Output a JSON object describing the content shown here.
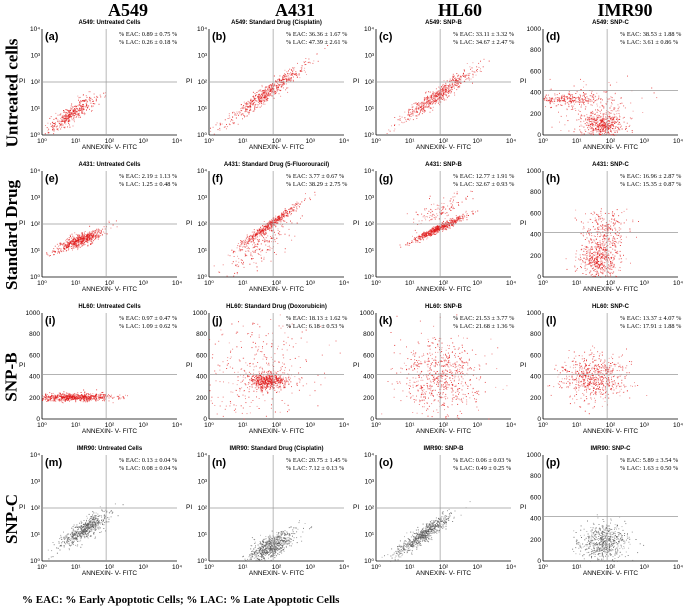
{
  "columns": [
    "A549",
    "A431",
    "HL60",
    "IMR90"
  ],
  "rows": [
    "Untreated cells",
    "Standard Drug",
    "SNP-B",
    "SNP-C"
  ],
  "footer": "% EAC: % Early Apoptotic Cells; % LAC: % Late Apoptotic Cells",
  "chart_data": {
    "type": "scatter",
    "description_axes": {
      "xlabel": "ANNEXIN- V- FITC",
      "ylabel": "PI"
    },
    "colors": {
      "red": "#e01818",
      "gray": "#555555",
      "quadrant_line": "#9a9a9a"
    },
    "panels": [
      {
        "id": "a",
        "title": "A549: Untreated Cells",
        "eac": "% EAC: 0.89 ± 0.75 %",
        "lac": "% LAC: 0.26 ± 0.18 %",
        "yscale": "log",
        "xticks": [
          "10⁰",
          "10¹",
          "10²",
          "10³",
          "10⁴"
        ],
        "yticks": [
          "10⁰",
          "10¹",
          "10²",
          "10³",
          "10⁴"
        ],
        "color": "red",
        "clusters": [
          {
            "x": 0.9,
            "y": 0.85,
            "sx": 0.35,
            "sy": 0.3,
            "n": 420,
            "rot": 0.8
          }
        ]
      },
      {
        "id": "e",
        "title": "A431: Untreated Cells",
        "eac": "% EAC: 2.19 ± 1.13 %",
        "lac": "% LAC: 1.25 ± 0.48 %",
        "yscale": "log",
        "xticks": [
          "10⁰",
          "10¹",
          "10²",
          "10³",
          "10⁴"
        ],
        "yticks": [
          "10⁰",
          "10¹",
          "10²",
          "10³",
          "10⁴"
        ],
        "color": "red",
        "clusters": [
          {
            "x": 1.1,
            "y": 1.4,
            "sx": 0.35,
            "sy": 0.2,
            "n": 600,
            "rot": 0.5
          }
        ]
      },
      {
        "id": "i",
        "title": "HL60: Untreated Cells",
        "eac": "% EAC: 0.97 ± 0.47 %",
        "lac": "% LAC: 1.09 ± 0.62 %",
        "yscale": "linear",
        "xticks": [
          "10⁰",
          "10¹",
          "10²",
          "10³",
          "10⁴"
        ],
        "yticks": [
          "0",
          "200",
          "400",
          "600",
          "800",
          "1000"
        ],
        "color": "red",
        "clusters": [
          {
            "x": 0.95,
            "y": 210,
            "sx": 0.55,
            "sy": 18,
            "n": 700,
            "rot": 0
          }
        ]
      },
      {
        "id": "m",
        "title": "IMR90: Untreated Cells",
        "eac": "% EAC: 0.13 ± 0.04 %",
        "lac": "% LAC: 0.08 ± 0.04 %",
        "yscale": "log",
        "xticks": [
          "10⁰",
          "10¹",
          "10²",
          "10³",
          "10⁴"
        ],
        "yticks": [
          "10⁰",
          "10¹",
          "10²",
          "10³",
          "10⁴"
        ],
        "color": "gray",
        "clusters": [
          {
            "x": 1.25,
            "y": 1.2,
            "sx": 0.35,
            "sy": 0.3,
            "n": 600,
            "rot": 0.75
          }
        ]
      },
      {
        "id": "b",
        "title": "A549: Standard Drug (Cisplatin)",
        "eac": "% EAC: 36.36 ± 1.67 %",
        "lac": "% LAC: 47.39 ± 2.61 %",
        "yscale": "log",
        "xticks": [
          "10⁰",
          "10¹",
          "10²",
          "10³",
          "10⁴"
        ],
        "yticks": [
          "10⁰",
          "10¹",
          "10²",
          "10³",
          "10⁴"
        ],
        "color": "red",
        "clusters": [
          {
            "x": 1.7,
            "y": 1.6,
            "sx": 0.6,
            "sy": 0.25,
            "n": 600,
            "rot": 0.9
          }
        ]
      },
      {
        "id": "f",
        "title": "A431: Standard Drug (5-Fluorouracil)",
        "eac": "% EAC: 3.77 ± 0.67 %",
        "lac": "% LAC: 38.29 ± 2.75 %",
        "yscale": "log",
        "xticks": [
          "10⁰",
          "10¹",
          "10²",
          "10³",
          "10⁴"
        ],
        "yticks": [
          "10⁰",
          "10¹",
          "10²",
          "10³",
          "10⁴"
        ],
        "color": "red",
        "clusters": [
          {
            "x": 1.75,
            "y": 1.95,
            "sx": 0.45,
            "sy": 0.15,
            "n": 500,
            "rot": 0.9
          },
          {
            "x": 1.5,
            "y": 1.2,
            "sx": 0.5,
            "sy": 0.5,
            "n": 200,
            "rot": 0.8
          }
        ]
      },
      {
        "id": "j",
        "title": "HL60: Standard Drug (Doxorubicin)",
        "eac": "% EAC: 18.13 ± 1.62 %",
        "lac": "% LAC: 6.18 ± 0.53 %",
        "yscale": "linear",
        "xticks": [
          "10⁰",
          "10¹",
          "10²",
          "10³",
          "10⁴"
        ],
        "yticks": [
          "0",
          "200",
          "400",
          "600",
          "800",
          "1000"
        ],
        "color": "red",
        "clusters": [
          {
            "x": 1.75,
            "y": 360,
            "sx": 0.28,
            "sy": 40,
            "n": 550,
            "rot": 0
          },
          {
            "x": 1.5,
            "y": 450,
            "sx": 0.8,
            "sy": 240,
            "n": 350,
            "rot": 0
          }
        ]
      },
      {
        "id": "n",
        "title": "IMR90: Standard Drug (Cisplatin)",
        "eac": "% EAC: 20.75 ± 1.45 %",
        "lac": "% LAC: 7.12 ± 0.13 %",
        "yscale": "log",
        "xticks": [
          "10⁰",
          "10¹",
          "10²",
          "10³",
          "10⁴"
        ],
        "yticks": [
          "10⁰",
          "10¹",
          "10²",
          "10³",
          "10⁴"
        ],
        "color": "gray",
        "clusters": [
          {
            "x": 1.85,
            "y": 0.6,
            "sx": 0.35,
            "sy": 0.35,
            "n": 650,
            "rot": 0.6
          }
        ]
      },
      {
        "id": "c",
        "title": "A549: SNP-B",
        "eac": "% EAC: 33.11 ± 3.32 %",
        "lac": "% LAC: 34.67 ± 2.47 %",
        "yscale": "log",
        "xticks": [
          "10⁰",
          "10¹",
          "10²",
          "10³",
          "10⁴"
        ],
        "yticks": [
          "10⁰",
          "10¹",
          "10²",
          "10³",
          "10⁴"
        ],
        "color": "red",
        "clusters": [
          {
            "x": 1.8,
            "y": 1.5,
            "sx": 0.55,
            "sy": 0.25,
            "n": 600,
            "rot": 0.9
          }
        ]
      },
      {
        "id": "g",
        "title": "A431: SNP-B",
        "eac": "% EAC: 12.77 ± 1.91 %",
        "lac": "% LAC: 32.67 ± 0.93 %",
        "yscale": "log",
        "xticks": [
          "10⁰",
          "10¹",
          "10²",
          "10³",
          "10⁴"
        ],
        "yticks": [
          "10⁰",
          "10¹",
          "10²",
          "10³",
          "10⁴"
        ],
        "color": "red",
        "clusters": [
          {
            "x": 1.85,
            "y": 1.85,
            "sx": 0.4,
            "sy": 0.12,
            "n": 550,
            "rot": 0.6
          },
          {
            "x": 1.9,
            "y": 2.5,
            "sx": 0.4,
            "sy": 0.4,
            "n": 120,
            "rot": 0.5
          }
        ]
      },
      {
        "id": "k",
        "title": "HL60: SNP-B",
        "eac": "% EAC: 21.53 ± 3.77 %",
        "lac": "% LAC: 21.68 ± 1.36 %",
        "yscale": "linear",
        "xticks": [
          "10⁰",
          "10¹",
          "10²",
          "10³",
          "10⁴"
        ],
        "yticks": [
          "0",
          "200",
          "400",
          "600",
          "800",
          "1000"
        ],
        "color": "red",
        "clusters": [
          {
            "x": 1.9,
            "y": 400,
            "sx": 0.6,
            "sy": 180,
            "n": 700,
            "rot": 0
          }
        ]
      },
      {
        "id": "o",
        "title": "IMR90: SNP-B",
        "eac": "% EAC: 0.06 ± 0.03 %",
        "lac": "% LAC: 0.49 ± 0.25 %",
        "yscale": "log",
        "xticks": [
          "10⁰",
          "10¹",
          "10²",
          "10³",
          "10⁴"
        ],
        "yticks": [
          "10⁰",
          "10¹",
          "10²",
          "10³",
          "10⁴"
        ],
        "color": "gray",
        "clusters": [
          {
            "x": 1.4,
            "y": 1.0,
            "sx": 0.4,
            "sy": 0.25,
            "n": 650,
            "rot": 0.85
          }
        ]
      },
      {
        "id": "d",
        "title": "A549: SNP-C",
        "eac": "% EAC: 38.53 ± 1.88 %",
        "lac": "% LAC: 3.61 ± 0.86 %",
        "yscale": "linear",
        "xticks": [
          "10⁰",
          "10¹",
          "10²",
          "10³",
          "10⁴"
        ],
        "yticks": [
          "0",
          "200",
          "400",
          "600",
          "800",
          "1000"
        ],
        "color": "red",
        "clusters": [
          {
            "x": 1.75,
            "y": 100,
            "sx": 0.3,
            "sy": 60,
            "n": 450,
            "rot": 0
          },
          {
            "x": 0.6,
            "y": 340,
            "sx": 0.6,
            "sy": 25,
            "n": 250,
            "rot": 0
          },
          {
            "x": 1.5,
            "y": 250,
            "sx": 0.7,
            "sy": 140,
            "n": 200,
            "rot": 0
          }
        ]
      },
      {
        "id": "h",
        "title": "A431: SNP-C",
        "eac": "% EAC: 16.96 ± 2.87 %",
        "lac": "% LAC: 15.35 ± 0.87 %",
        "yscale": "linear",
        "xticks": [
          "10⁰",
          "10¹",
          "10²",
          "10³",
          "10⁴"
        ],
        "yticks": [
          "0",
          "200",
          "400",
          "600",
          "800",
          "1000"
        ],
        "color": "red",
        "clusters": [
          {
            "x": 1.65,
            "y": 170,
            "sx": 0.3,
            "sy": 90,
            "n": 500,
            "rot": 0
          },
          {
            "x": 1.85,
            "y": 450,
            "sx": 0.35,
            "sy": 90,
            "n": 250,
            "rot": 0
          }
        ]
      },
      {
        "id": "l",
        "title": "HL60: SNP-C",
        "eac": "% EAC: 13.37 ± 4.07 %",
        "lac": "% LAC: 17.91 ± 1.88 %",
        "yscale": "linear",
        "xticks": [
          "10⁰",
          "10¹",
          "10²",
          "10³",
          "10⁴"
        ],
        "yticks": [
          "0",
          "200",
          "400",
          "600",
          "800",
          "1000"
        ],
        "color": "red",
        "clusters": [
          {
            "x": 1.5,
            "y": 390,
            "sx": 0.5,
            "sy": 110,
            "n": 650,
            "rot": 0
          }
        ]
      },
      {
        "id": "p",
        "title": "IMR90: SNP-C",
        "eac": "% EAC: 5.89 ± 3.54 %",
        "lac": "% LAC: 1.63 ± 0.50 %",
        "yscale": "linear",
        "xticks": [
          "10⁰",
          "10¹",
          "10²",
          "10³",
          "10⁴"
        ],
        "yticks": [
          "0",
          "200",
          "400",
          "600",
          "800",
          "1000"
        ],
        "color": "gray",
        "clusters": [
          {
            "x": 1.85,
            "y": 180,
            "sx": 0.35,
            "sy": 90,
            "n": 600,
            "rot": 0
          }
        ]
      }
    ]
  }
}
